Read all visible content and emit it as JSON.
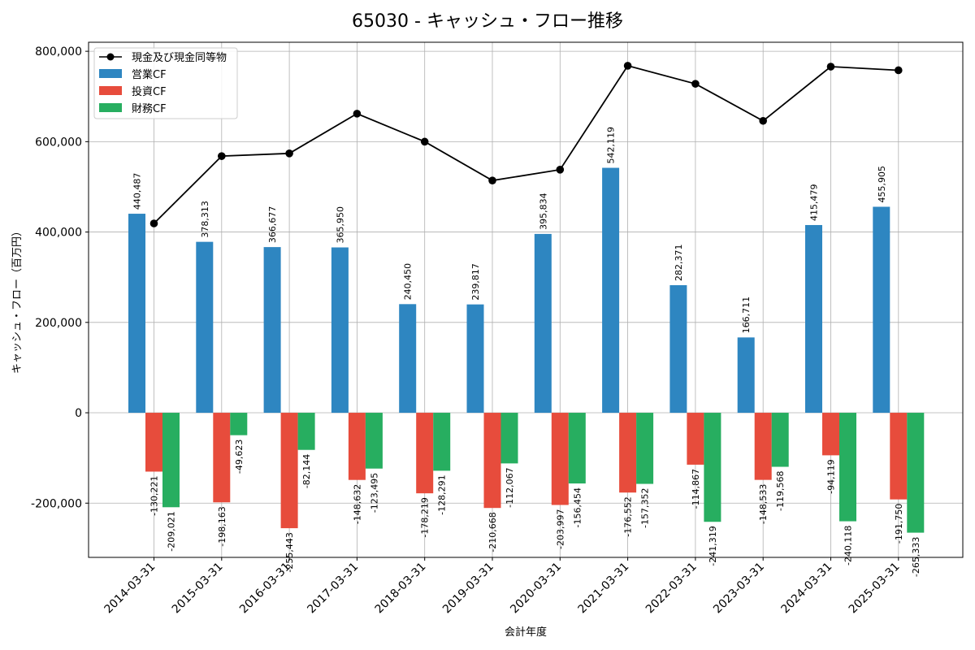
{
  "chart_data": {
    "type": "bar",
    "title": "65030 - キャッシュ・フロー推移",
    "xlabel": "会計年度",
    "ylabel": "キャッシュ・フロー（百万円）",
    "ylim": [
      -320000,
      820000
    ],
    "yticks": [
      -200000,
      0,
      200000,
      400000,
      600000,
      800000
    ],
    "ytick_labels": [
      "-200,000",
      "0",
      "200,000",
      "400,000",
      "600,000",
      "800,000"
    ],
    "grid": true,
    "legend_position": "top-left",
    "categories": [
      "2014-03-31",
      "2015-03-31",
      "2016-03-31",
      "2017-03-31",
      "2018-03-31",
      "2019-03-31",
      "2020-03-31",
      "2021-03-31",
      "2022-03-31",
      "2023-03-31",
      "2024-03-31",
      "2025-03-31"
    ],
    "line_series": {
      "name": "現金及び現金同等物",
      "color": "#000000",
      "values": [
        419000,
        568000,
        574000,
        662000,
        600000,
        514000,
        538000,
        768000,
        728000,
        646000,
        766000,
        758000
      ]
    },
    "series": [
      {
        "name": "営業CF",
        "color": "#2e86c1",
        "values": [
          440487,
          378313,
          366677,
          365950,
          240450,
          239817,
          395834,
          542119,
          282371,
          166711,
          415479,
          455905
        ],
        "labels": [
          "440,487",
          "378,313",
          "366,677",
          "365,950",
          "240,450",
          "239,817",
          "395,834",
          "542,119",
          "282,371",
          "166,711",
          "415,479",
          "455,905"
        ]
      },
      {
        "name": "投資CF",
        "color": "#e74c3c",
        "values": [
          -130221,
          -198163,
          -255443,
          -148632,
          -178219,
          -210668,
          -203997,
          -176552,
          -114867,
          -148533,
          -94119,
          -191750
        ],
        "labels": [
          "-130,221",
          "-198,163",
          "-255,443",
          "-148,632",
          "-178,219",
          "-210,668",
          "-203,997",
          "-176,552",
          "-114,867",
          "-148,533",
          "-94,119",
          "-191,750"
        ]
      },
      {
        "name": "財務CF",
        "color": "#27ae60",
        "values": [
          -209021,
          -49623,
          -82144,
          -123495,
          -128291,
          -112067,
          -156454,
          -157352,
          -241319,
          -119568,
          -240118,
          -265333
        ],
        "labels": [
          "-209,021",
          "-49,623",
          "-82,144",
          "-123,495",
          "-128,291",
          "-112,067",
          "-156,454",
          "-157,352",
          "-241,319",
          "-119,568",
          "-240,118",
          "-265,333"
        ]
      }
    ]
  }
}
